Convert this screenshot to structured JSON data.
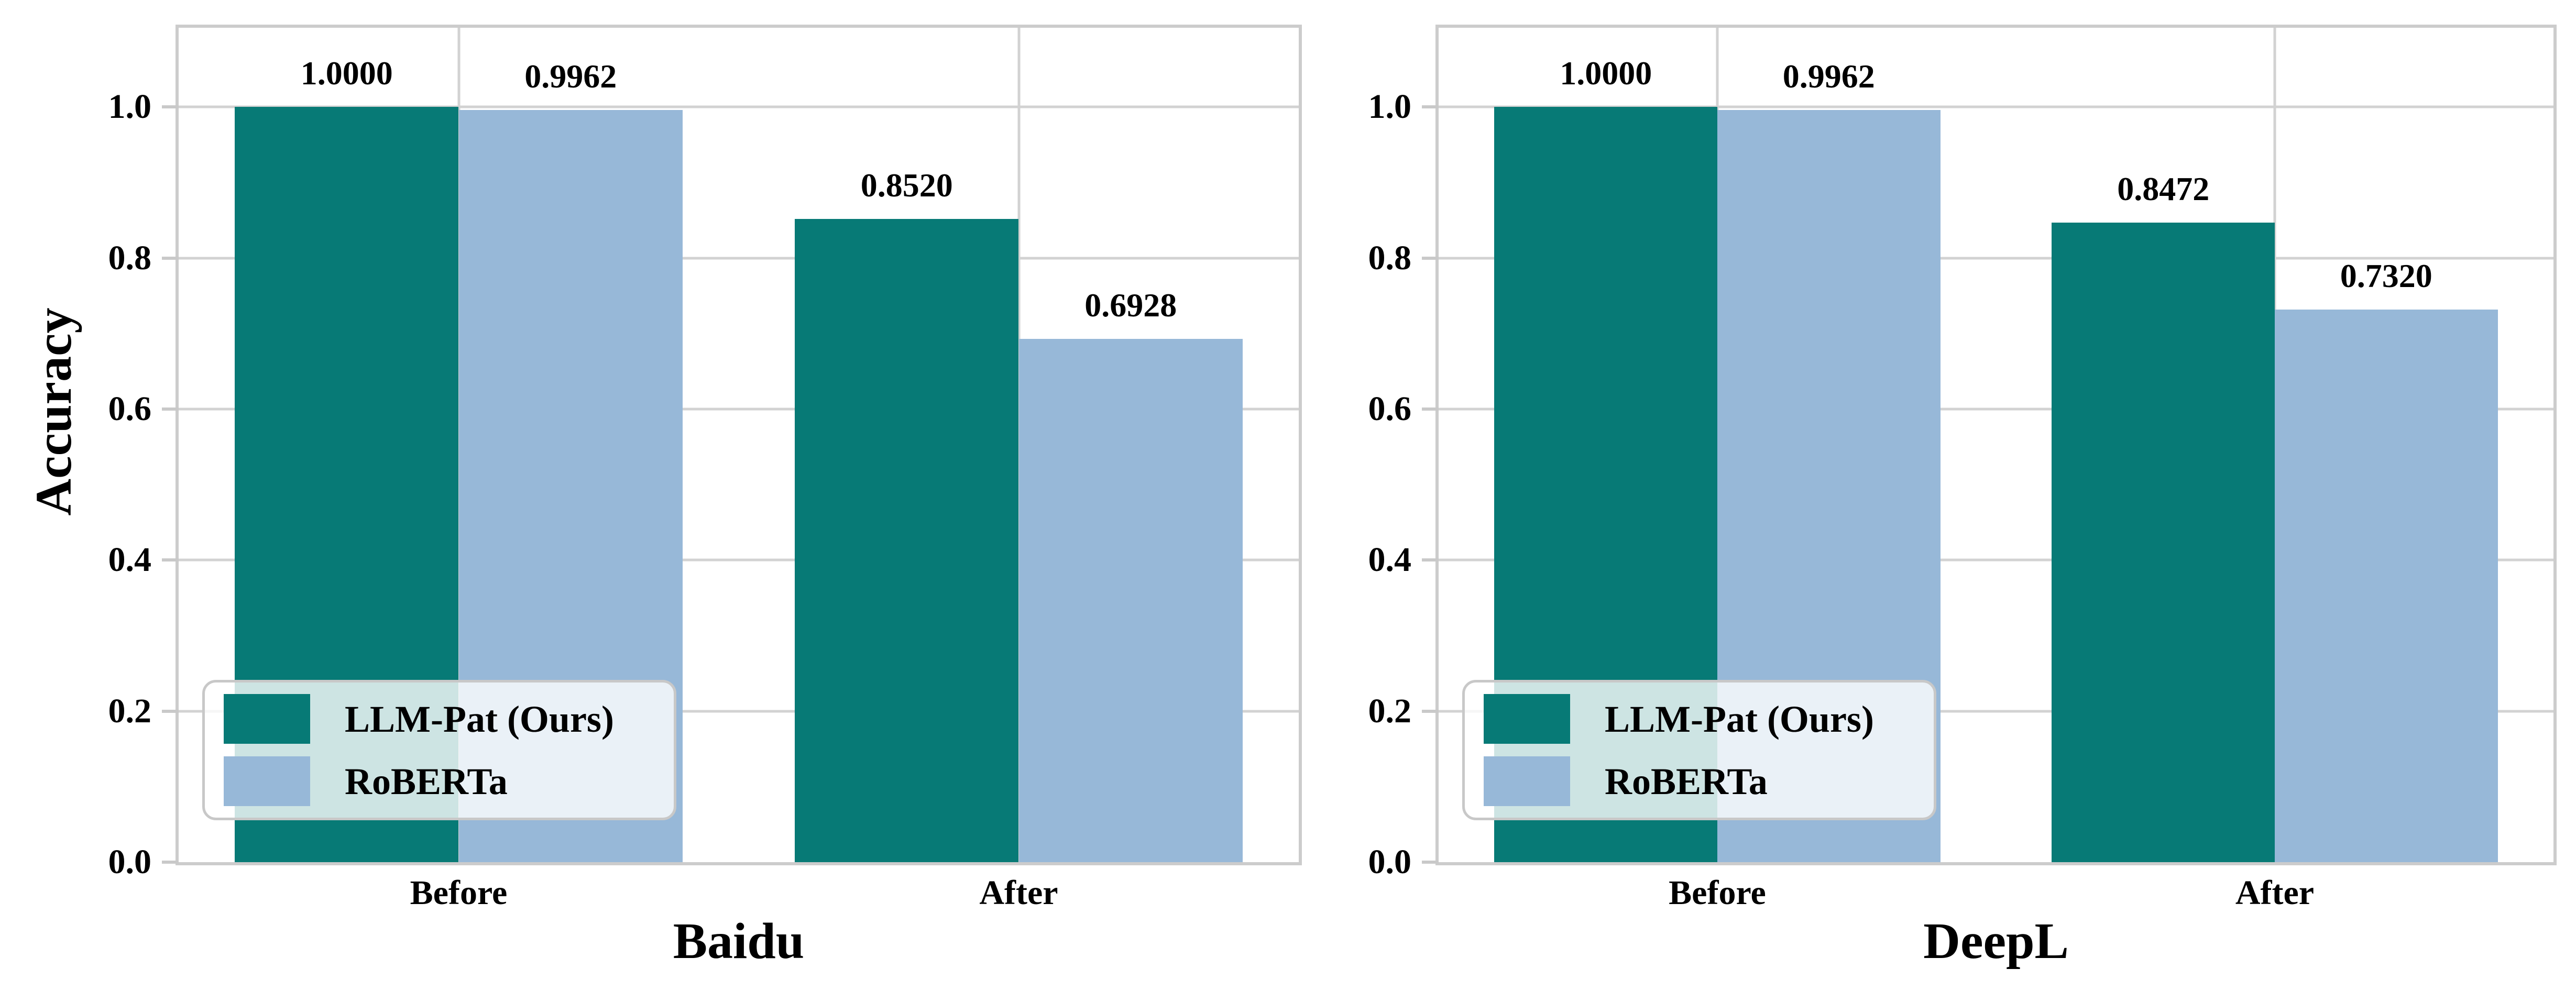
{
  "figure": {
    "background": "#ffffff",
    "ylabel": "Accuracy"
  },
  "style": {
    "teal": "#077a76",
    "blue": "#97b8d8",
    "grid_color": "#d2d2d2",
    "spine_color": "#cccccc",
    "text_color": "#000000",
    "legend_bg": "rgba(255,255,255,0.8)"
  },
  "legend": {
    "entries": [
      {
        "label": "LLM-Pat (Ours)",
        "color_key": "teal"
      },
      {
        "label": "RoBERTa",
        "color_key": "blue"
      }
    ]
  },
  "chart_data": [
    {
      "type": "bar",
      "title": "Baidu",
      "xlabel": "Baidu",
      "ylabel": "Accuracy",
      "categories": [
        "Before",
        "After"
      ],
      "series": [
        {
          "name": "LLM-Pat (Ours)",
          "color_key": "teal",
          "values": [
            1.0,
            0.852
          ],
          "labels": [
            "1.0000",
            "0.8520"
          ]
        },
        {
          "name": "RoBERTa",
          "color_key": "blue",
          "values": [
            0.9962,
            0.6928
          ],
          "labels": [
            "0.9962",
            "0.6928"
          ]
        }
      ],
      "ylim": [
        0,
        1.105
      ],
      "yticks": [
        0.0,
        0.2,
        0.4,
        0.6,
        0.8,
        1.0
      ],
      "ytick_labels": [
        "0.0",
        "0.2",
        "0.4",
        "0.6",
        "0.8",
        "1.0"
      ],
      "grid": true,
      "legend_position": "lower left"
    },
    {
      "type": "bar",
      "title": "DeepL",
      "xlabel": "DeepL",
      "ylabel": "",
      "categories": [
        "Before",
        "After"
      ],
      "series": [
        {
          "name": "LLM-Pat (Ours)",
          "color_key": "teal",
          "values": [
            1.0,
            0.8472
          ],
          "labels": [
            "1.0000",
            "0.8472"
          ]
        },
        {
          "name": "RoBERTa",
          "color_key": "blue",
          "values": [
            0.9962,
            0.732
          ],
          "labels": [
            "0.9962",
            "0.7320"
          ]
        }
      ],
      "ylim": [
        0,
        1.105
      ],
      "yticks": [
        0.0,
        0.2,
        0.4,
        0.6,
        0.8,
        1.0
      ],
      "ytick_labels": [
        "0.0",
        "0.2",
        "0.4",
        "0.6",
        "0.8",
        "1.0"
      ],
      "grid": true,
      "legend_position": "lower left"
    }
  ]
}
